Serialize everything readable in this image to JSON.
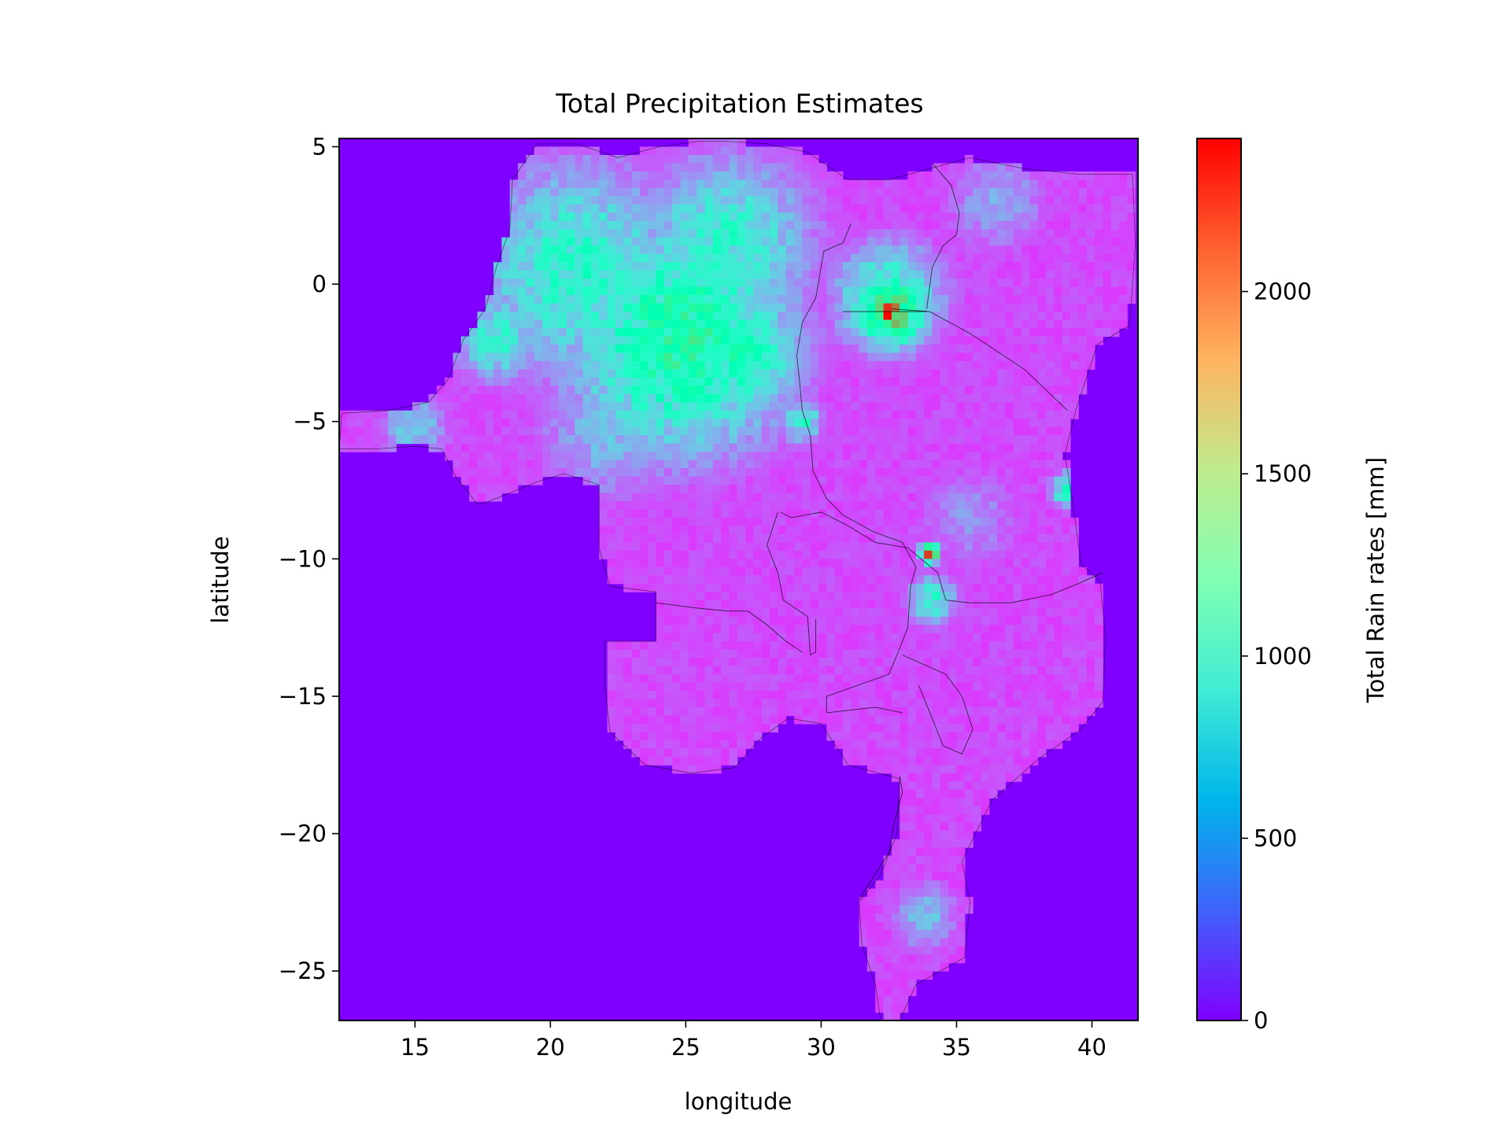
{
  "chart_data": {
    "type": "heatmap",
    "title": "Total Precipitation Estimates",
    "xlabel": "longitude",
    "ylabel": "latitude",
    "xlim": [
      12.2,
      41.7
    ],
    "ylim": [
      -26.8,
      5.3
    ],
    "x_ticks": [
      15,
      20,
      25,
      30,
      35,
      40
    ],
    "x_tick_labels": [
      "15",
      "20",
      "25",
      "30",
      "35",
      "40"
    ],
    "y_ticks": [
      5,
      0,
      -5,
      -10,
      -15,
      -20,
      -25
    ],
    "y_tick_labels": [
      "5",
      "0",
      "−5",
      "−10",
      "−15",
      "−20",
      "−25"
    ],
    "colorbar": {
      "label": "Total Rain rates [mm]",
      "colormap": "rainbow",
      "range": [
        0,
        2420
      ],
      "ticks": [
        0,
        500,
        1000,
        1500,
        2000
      ],
      "tick_labels": [
        "0",
        "500",
        "1000",
        "1500",
        "2000"
      ]
    },
    "background_color": "#8000ff",
    "region_outline": [
      [
        26.5,
        5.2
      ],
      [
        28,
        5.1
      ],
      [
        29.5,
        4.8
      ],
      [
        31,
        3.8
      ],
      [
        32.5,
        3.8
      ],
      [
        34,
        4.2
      ],
      [
        35.5,
        4.6
      ],
      [
        37.5,
        4.2
      ],
      [
        39.5,
        4
      ],
      [
        41.5,
        4
      ],
      [
        41.6,
        1.5
      ],
      [
        41.4,
        -1.5
      ],
      [
        40.2,
        -2.2
      ],
      [
        39.4,
        -4.6
      ],
      [
        39,
        -6.2
      ],
      [
        39.3,
        -8
      ],
      [
        39.6,
        -10.2
      ],
      [
        40.3,
        -10.8
      ],
      [
        40.5,
        -12.8
      ],
      [
        40.4,
        -15.2
      ],
      [
        39.6,
        -16.2
      ],
      [
        38,
        -17.3
      ],
      [
        36.3,
        -18.8
      ],
      [
        35.2,
        -21
      ],
      [
        35.5,
        -22.5
      ],
      [
        35.3,
        -24.5
      ],
      [
        33.5,
        -25.5
      ],
      [
        32.9,
        -26.8
      ],
      [
        32.2,
        -26.8
      ],
      [
        32,
        -25.5
      ],
      [
        31.5,
        -24
      ],
      [
        31.4,
        -22.5
      ],
      [
        32.2,
        -21.5
      ],
      [
        32.8,
        -20
      ],
      [
        32.9,
        -18
      ],
      [
        31,
        -17.5
      ],
      [
        30,
        -16
      ],
      [
        28.8,
        -15.8
      ],
      [
        27.8,
        -16.5
      ],
      [
        26.8,
        -17.6
      ],
      [
        25.2,
        -17.8
      ],
      [
        23.5,
        -17.5
      ],
      [
        22.2,
        -16.3
      ],
      [
        22,
        -14.5
      ],
      [
        22,
        -13
      ],
      [
        23.9,
        -13
      ],
      [
        23.9,
        -11.2
      ],
      [
        22.2,
        -11
      ],
      [
        21.8,
        -9.6
      ],
      [
        21.8,
        -7.3
      ],
      [
        20.5,
        -6.9
      ],
      [
        19.5,
        -7.2
      ],
      [
        17.5,
        -8
      ],
      [
        17.3,
        -8
      ],
      [
        16.5,
        -7
      ],
      [
        16,
        -6
      ],
      [
        15,
        -5.9
      ],
      [
        13.5,
        -6
      ],
      [
        12.2,
        -6
      ],
      [
        12.3,
        -4.7
      ],
      [
        14,
        -4.6
      ],
      [
        15.5,
        -4.3
      ],
      [
        16.2,
        -3.5
      ],
      [
        16.8,
        -2
      ],
      [
        17.6,
        -0.9
      ],
      [
        18,
        0.6
      ],
      [
        18.5,
        2
      ],
      [
        18.6,
        3.8
      ],
      [
        19.5,
        5.1
      ],
      [
        21,
        5.1
      ],
      [
        22.5,
        4.6
      ],
      [
        24,
        5
      ],
      [
        25.5,
        5.2
      ],
      [
        26.5,
        5.2
      ]
    ],
    "borders": [
      [
        [
          31.1,
          2.2
        ],
        [
          30.8,
          1.5
        ],
        [
          30.1,
          1.2
        ],
        [
          29.8,
          -0.5
        ],
        [
          29.3,
          -1.4
        ],
        [
          29.1,
          -2.6
        ],
        [
          29.2,
          -3.5
        ],
        [
          29.3,
          -4.6
        ],
        [
          29.6,
          -5.5
        ],
        [
          29.7,
          -6.8
        ],
        [
          30.2,
          -7.8
        ],
        [
          30.8,
          -8.4
        ],
        [
          31.9,
          -9
        ],
        [
          33,
          -9.4
        ],
        [
          33.5,
          -10.3
        ],
        [
          33.3,
          -11
        ],
        [
          33.2,
          -12.5
        ],
        [
          32.8,
          -13.5
        ],
        [
          32.5,
          -14.2
        ],
        [
          30.2,
          -15
        ],
        [
          30.2,
          -15.6
        ]
      ],
      [
        [
          32.6,
          -0.9
        ],
        [
          34,
          -1
        ],
        [
          35.5,
          -1.8
        ],
        [
          37.5,
          -3.1
        ],
        [
          39.1,
          -4.6
        ]
      ],
      [
        [
          30.8,
          -1
        ],
        [
          33.9,
          -1
        ]
      ],
      [
        [
          34.1,
          4.4
        ],
        [
          34.8,
          3.6
        ],
        [
          35.1,
          2.6
        ],
        [
          35,
          1.8
        ],
        [
          34.5,
          1.4
        ],
        [
          34.1,
          0.6
        ],
        [
          33.9,
          -0.9
        ]
      ],
      [
        [
          28.5,
          -8.3
        ],
        [
          28.9,
          -8.5
        ],
        [
          30,
          -8.3
        ],
        [
          31,
          -8.8
        ],
        [
          32,
          -9.4
        ],
        [
          33.2,
          -9.6
        ],
        [
          34.3,
          -10.5
        ],
        [
          34.6,
          -11.5
        ],
        [
          35.5,
          -11.6
        ],
        [
          37,
          -11.6
        ],
        [
          38.5,
          -11.3
        ],
        [
          39.5,
          -10.9
        ],
        [
          40.4,
          -10.5
        ]
      ],
      [
        [
          32.9,
          -17.9
        ],
        [
          33,
          -18.5
        ],
        [
          32.7,
          -19.6
        ],
        [
          32.5,
          -20.7
        ],
        [
          31.4,
          -22.4
        ]
      ],
      [
        [
          33,
          -13.5
        ],
        [
          34.6,
          -14.2
        ],
        [
          35.2,
          -15
        ],
        [
          35.6,
          -16.2
        ],
        [
          35.2,
          -17.1
        ],
        [
          34.5,
          -16.8
        ],
        [
          34.1,
          -15.8
        ],
        [
          33.6,
          -14.6
        ]
      ],
      [
        [
          28.4,
          -8.3
        ],
        [
          28,
          -9.5
        ],
        [
          28.4,
          -10.5
        ],
        [
          28.6,
          -11.5
        ],
        [
          29.5,
          -12.1
        ],
        [
          29.6,
          -13.5
        ],
        [
          29.8,
          -13.4
        ],
        [
          29.8,
          -12.2
        ]
      ],
      [
        [
          23.9,
          -11.6
        ],
        [
          25.5,
          -11.8
        ],
        [
          26.6,
          -11.9
        ],
        [
          27.3,
          -11.9
        ],
        [
          28,
          -12.4
        ],
        [
          28.7,
          -13
        ],
        [
          29.3,
          -13.4
        ]
      ],
      [
        [
          30.2,
          -15.6
        ],
        [
          32,
          -15.4
        ],
        [
          33,
          -15.6
        ]
      ]
    ],
    "hotspots": [
      {
        "lon": 32.5,
        "lat": -1.0,
        "value": 2400,
        "radius_deg": 0.4
      },
      {
        "lon": 32.6,
        "lat": -1.0,
        "value": 1750,
        "radius_deg": 1.0
      },
      {
        "lon": 32.5,
        "lat": -0.5,
        "value": 1100,
        "radius_deg": 1.6
      },
      {
        "lon": 34.0,
        "lat": -9.8,
        "value": 2300,
        "radius_deg": 0.25
      },
      {
        "lon": 24.8,
        "lat": -2.0,
        "value": 1350,
        "radius_deg": 3.2
      },
      {
        "lon": 21.0,
        "lat": 0.5,
        "value": 1050,
        "radius_deg": 3.0
      },
      {
        "lon": 26.5,
        "lat": 1.5,
        "value": 1000,
        "radius_deg": 2.5
      },
      {
        "lon": 27.0,
        "lat": -2.5,
        "value": 1200,
        "radius_deg": 1.8
      },
      {
        "lon": 18.0,
        "lat": -2.0,
        "value": 1000,
        "radius_deg": 1.2
      },
      {
        "lon": 15.0,
        "lat": -5.2,
        "value": 750,
        "radius_deg": 1.0
      },
      {
        "lon": 39.2,
        "lat": -7.5,
        "value": 1300,
        "radius_deg": 0.5
      },
      {
        "lon": 29.3,
        "lat": -5.0,
        "value": 1000,
        "radius_deg": 0.6
      },
      {
        "lon": 34.1,
        "lat": -11.5,
        "value": 1000,
        "radius_deg": 0.7
      },
      {
        "lon": 33.8,
        "lat": -23.0,
        "value": 700,
        "radius_deg": 1.0
      },
      {
        "lon": 22.0,
        "lat": -5.5,
        "value": 650,
        "radius_deg": 2.0
      },
      {
        "lon": 36.5,
        "lat": 3.0,
        "value": 600,
        "radius_deg": 1.5
      },
      {
        "lon": 35.5,
        "lat": -8.5,
        "value": 500,
        "radius_deg": 1.5
      }
    ]
  }
}
